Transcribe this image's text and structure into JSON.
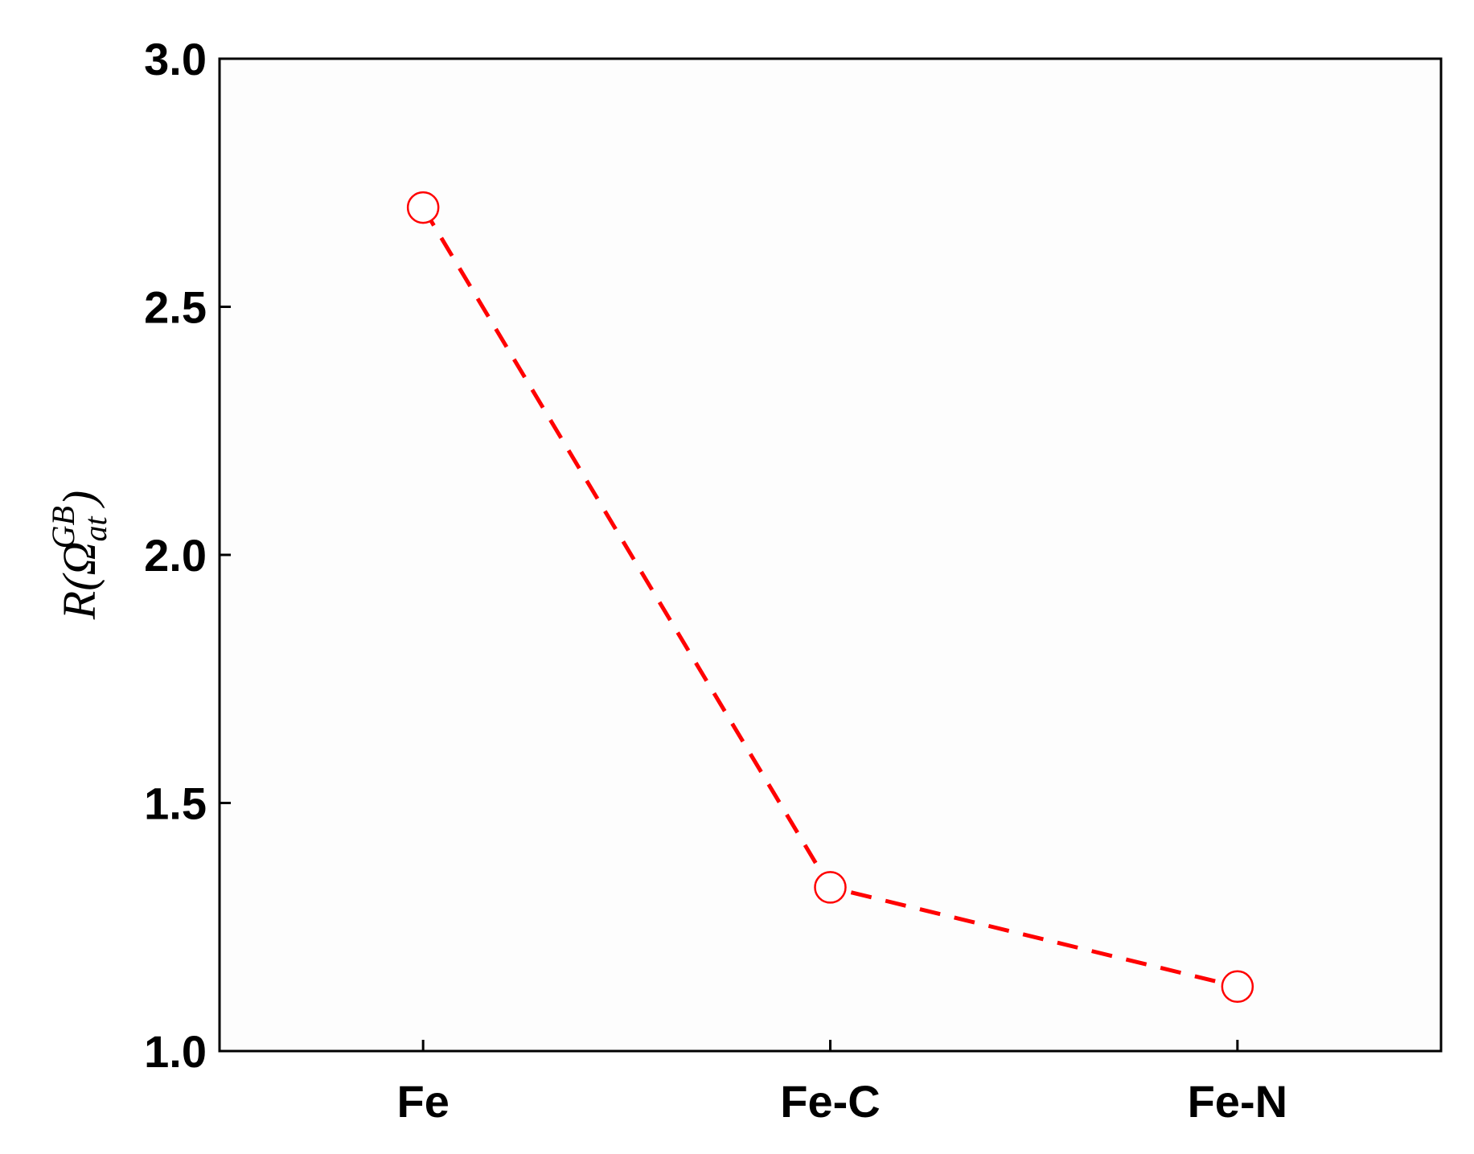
{
  "chart_data": {
    "type": "line",
    "categories": [
      "Fe",
      "Fe-C",
      "Fe-N"
    ],
    "series": [
      {
        "name": "R",
        "color": "#ff0000",
        "values": [
          2.7,
          1.33,
          1.13
        ]
      }
    ],
    "ylabel": {
      "main": "R(Ω",
      "sub": "at",
      "sup": "GB",
      "close": ")"
    },
    "ylim": [
      1.0,
      3.0
    ],
    "yticks": [
      {
        "value": 1,
        "label": "1.0"
      },
      1.5,
      {
        "value": 2,
        "label": "2.0"
      },
      2.5,
      {
        "value": 3,
        "label": "3.0"
      }
    ]
  }
}
